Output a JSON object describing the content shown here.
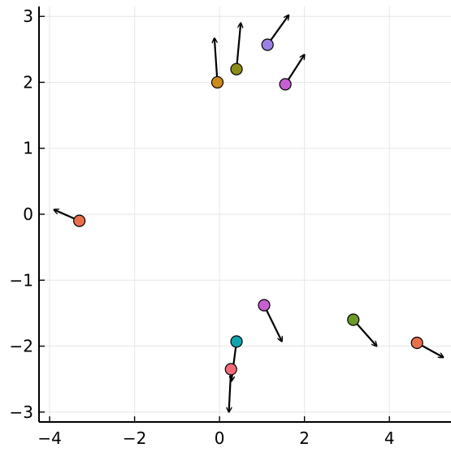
{
  "chart_data": {
    "type": "scatter",
    "title": "",
    "xlabel": "",
    "ylabel": "",
    "xlim": [
      -4.25,
      5.45
    ],
    "ylim": [
      -3.15,
      3.15
    ],
    "xticks": [
      -4,
      -2,
      0,
      2,
      4
    ],
    "yticks": [
      -3,
      -2,
      -1,
      0,
      1,
      2,
      3
    ],
    "xtick_labels": [
      "−4",
      "−2",
      "0",
      "2",
      "4"
    ],
    "ytick_labels": [
      "−3",
      "−2",
      "−1",
      "0",
      "1",
      "2",
      "3"
    ],
    "grid": true,
    "legend": "none",
    "points": [
      {
        "x": -3.3,
        "y": -0.1,
        "dx": -0.6,
        "dy": 0.17,
        "color": "#e8704a"
      },
      {
        "x": -0.05,
        "y": 2.0,
        "dx": -0.07,
        "dy": 0.67,
        "color": "#cc8a1a"
      },
      {
        "x": 0.4,
        "y": 2.2,
        "dx": 0.1,
        "dy": 0.7,
        "color": "#8c8c1a"
      },
      {
        "x": 1.13,
        "y": 2.57,
        "dx": 0.5,
        "dy": 0.45,
        "color": "#9b82e2"
      },
      {
        "x": 1.55,
        "y": 1.97,
        "dx": 0.45,
        "dy": 0.45,
        "color": "#c660d0"
      },
      {
        "x": 1.05,
        "y": -1.38,
        "dx": 0.42,
        "dy": -0.55,
        "color": "#c660d0"
      },
      {
        "x": 0.4,
        "y": -1.93,
        "dx": -0.12,
        "dy": -0.6,
        "color": "#10a4b0"
      },
      {
        "x": 0.27,
        "y": -2.35,
        "dx": -0.05,
        "dy": -0.65,
        "color": "#f26a78"
      },
      {
        "x": 3.15,
        "y": -1.6,
        "dx": 0.55,
        "dy": -0.4,
        "color": "#6a9a2a"
      },
      {
        "x": 4.65,
        "y": -1.95,
        "dx": 0.62,
        "dy": -0.22,
        "color": "#e8704a"
      }
    ]
  }
}
